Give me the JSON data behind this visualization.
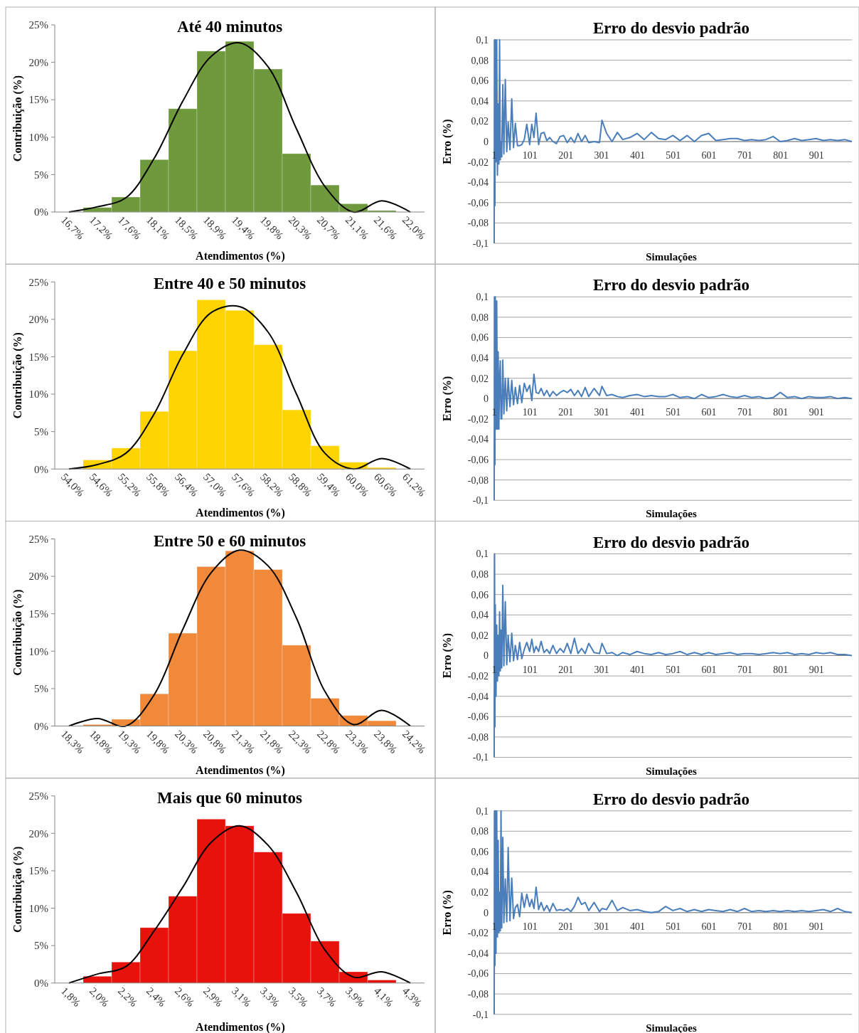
{
  "chart_data": [
    {
      "type": "bar",
      "title": "Até 40 minutos",
      "xlabel": "Atendimentos (%)",
      "ylabel": "Contribuição (%)",
      "categories": [
        "16,7%",
        "17,2%",
        "17,6%",
        "18,1%",
        "18,5%",
        "18,9%",
        "19,4%",
        "19,8%",
        "20,3%",
        "20,7%",
        "21,1%",
        "21,6%",
        "22,0%"
      ],
      "ylim": [
        0,
        25
      ],
      "yticks": [
        {
          "value": 0,
          "label": "0%"
        },
        {
          "value": 5,
          "label": "5%"
        },
        {
          "value": 10,
          "label": "10%"
        },
        {
          "value": 15,
          "label": "15%"
        },
        {
          "value": 20,
          "label": "20%"
        },
        {
          "value": 25,
          "label": "25%"
        }
      ],
      "series": [
        {
          "type": "bar",
          "color": "#6e9a3d",
          "values": [
            0,
            0.6,
            2.0,
            7.0,
            13.8,
            21.5,
            22.8,
            19.1,
            7.8,
            3.6,
            1.1,
            0.2,
            0
          ]
        },
        {
          "type": "line",
          "color": "#000000",
          "values": [
            0,
            0.7,
            1.9,
            7.2,
            14.8,
            20.8,
            22.6,
            19.4,
            11.1,
            3.4,
            0,
            1.5,
            0
          ]
        }
      ]
    },
    {
      "type": "line",
      "title": "Erro do desvio padrão",
      "xlabel": "Simulações",
      "ylabel": "Erro (%)",
      "grid": "y",
      "xlim": [
        1,
        1000
      ],
      "xticks": [
        1,
        101,
        201,
        301,
        401,
        501,
        601,
        701,
        801,
        901
      ],
      "ylim": [
        -0.1,
        0.1
      ],
      "yticks": [
        {
          "value": -0.1,
          "label": "-0,1"
        },
        {
          "value": -0.08,
          "label": "-0,08"
        },
        {
          "value": -0.06,
          "label": "-0,06"
        },
        {
          "value": -0.04,
          "label": "-0,04"
        },
        {
          "value": -0.02,
          "label": "-0,02"
        },
        {
          "value": 0,
          "label": "0"
        },
        {
          "value": 0.02,
          "label": "0,02"
        },
        {
          "value": 0.04,
          "label": "0,04"
        },
        {
          "value": 0.06,
          "label": "0,06"
        },
        {
          "value": 0.08,
          "label": "0,08"
        },
        {
          "value": 0.1,
          "label": "0,1"
        }
      ],
      "x": [
        1,
        2,
        3,
        4,
        6,
        8,
        10,
        12,
        14,
        16,
        18,
        20,
        22,
        25,
        28,
        32,
        36,
        40,
        45,
        50,
        55,
        60,
        66,
        72,
        78,
        85,
        92,
        100,
        106,
        112,
        118,
        125,
        132,
        140,
        148,
        156,
        165,
        175,
        185,
        195,
        205,
        215,
        225,
        235,
        245,
        255,
        265,
        280,
        295,
        302,
        315,
        330,
        345,
        360,
        380,
        400,
        420,
        440,
        460,
        480,
        500,
        520,
        540,
        560,
        580,
        600,
        620,
        640,
        660,
        680,
        700,
        720,
        740,
        760,
        780,
        800,
        820,
        840,
        860,
        880,
        900,
        920,
        940,
        960,
        980,
        1000
      ],
      "series": [
        {
          "type": "line",
          "color": "#4a7ebb",
          "values": [
            -0.1,
            0.1,
            -0.063,
            0.1,
            -0.02,
            0.1,
            -0.033,
            0.037,
            -0.022,
            0.1,
            -0.018,
            0,
            -0.015,
            0.056,
            -0.012,
            0.061,
            -0.01,
            0.019,
            -0.008,
            0.042,
            -0.006,
            0.018,
            -0.004,
            -0.004,
            -0.003,
            0.002,
            0.017,
            -0.003,
            0.017,
            0.004,
            0.028,
            -0.003,
            0.008,
            0.009,
            0.001,
            0.004,
            0,
            -0.002,
            0.005,
            0.006,
            -0.001,
            0.004,
            -0.001,
            0.008,
            0,
            0.006,
            -0.001,
            0,
            -0.001,
            0.021,
            0.008,
            0,
            0.009,
            0.002,
            0.004,
            0.008,
            0.002,
            0.009,
            0.003,
            0.002,
            0.006,
            0.001,
            0.006,
            0,
            0.006,
            0.008,
            0.001,
            0.002,
            0.003,
            0.003,
            0.001,
            0.002,
            0.001,
            0.002,
            0.005,
            0,
            0.001,
            0.003,
            0.001,
            0.002,
            0.003,
            0.001,
            0.002,
            0.001,
            0.002,
            0
          ]
        }
      ]
    },
    {
      "type": "bar",
      "title": "Entre 40 e 50 minutos",
      "xlabel": "Atendimentos (%)",
      "ylabel": "Contribuição (%)",
      "categories": [
        "54,0%",
        "54,6%",
        "55,2%",
        "55,8%",
        "56,4%",
        "57,0%",
        "57,6%",
        "58,2%",
        "58,8%",
        "59,4%",
        "60,0%",
        "60,6%",
        "61,2%"
      ],
      "ylim": [
        0,
        25
      ],
      "yticks": [
        {
          "value": 0,
          "label": "0%"
        },
        {
          "value": 5,
          "label": "5%"
        },
        {
          "value": 10,
          "label": "10%"
        },
        {
          "value": 15,
          "label": "15%"
        },
        {
          "value": 20,
          "label": "20%"
        },
        {
          "value": 25,
          "label": "25%"
        }
      ],
      "series": [
        {
          "type": "bar",
          "color": "#ffd400",
          "values": [
            0,
            1.2,
            2.8,
            7.7,
            15.8,
            22.6,
            21.2,
            16.6,
            7.9,
            3.1,
            0.9,
            0.2,
            0
          ]
        },
        {
          "type": "line",
          "color": "#000000",
          "values": [
            0,
            0.6,
            2.1,
            7.4,
            15.3,
            20.9,
            21.7,
            18.3,
            10.0,
            2.1,
            0,
            1.4,
            0
          ]
        }
      ]
    },
    {
      "type": "line",
      "title": "Erro do desvio padrão",
      "xlabel": "Simulações",
      "ylabel": "Erro (%)",
      "grid": "y",
      "xlim": [
        1,
        1000
      ],
      "xticks": [
        1,
        101,
        201,
        301,
        401,
        501,
        601,
        701,
        801,
        901
      ],
      "ylim": [
        -0.1,
        0.1
      ],
      "yticks": [
        {
          "value": -0.1,
          "label": "-0,1"
        },
        {
          "value": -0.08,
          "label": "-0,08"
        },
        {
          "value": -0.06,
          "label": "-0,06"
        },
        {
          "value": -0.04,
          "label": "-0,04"
        },
        {
          "value": -0.02,
          "label": "-0,02"
        },
        {
          "value": 0,
          "label": "0"
        },
        {
          "value": 0.02,
          "label": "0,02"
        },
        {
          "value": 0.04,
          "label": "0,04"
        },
        {
          "value": 0.06,
          "label": "0,06"
        },
        {
          "value": 0.08,
          "label": "0,08"
        },
        {
          "value": 0.1,
          "label": "0,1"
        }
      ],
      "x": [
        1,
        2,
        3,
        4,
        6,
        8,
        10,
        12,
        14,
        16,
        18,
        20,
        22,
        25,
        28,
        32,
        36,
        40,
        45,
        50,
        55,
        60,
        66,
        72,
        78,
        85,
        92,
        100,
        106,
        112,
        118,
        125,
        132,
        140,
        148,
        156,
        165,
        175,
        185,
        195,
        205,
        215,
        225,
        235,
        245,
        255,
        265,
        280,
        295,
        302,
        315,
        330,
        345,
        360,
        380,
        400,
        420,
        440,
        460,
        480,
        500,
        520,
        540,
        560,
        580,
        600,
        620,
        640,
        660,
        680,
        700,
        720,
        740,
        760,
        780,
        800,
        820,
        840,
        860,
        880,
        900,
        920,
        940,
        960,
        980,
        1000
      ],
      "series": [
        {
          "type": "line",
          "color": "#4a7ebb",
          "values": [
            -0.1,
            0.1,
            -0.065,
            0.1,
            -0.03,
            0.096,
            -0.03,
            0.046,
            -0.03,
            0.02,
            0.037,
            -0.02,
            -0.02,
            0.038,
            -0.015,
            0.02,
            -0.012,
            0.02,
            -0.008,
            0.018,
            -0.006,
            0.011,
            -0.005,
            0.013,
            -0.004,
            0.015,
            0.007,
            0.013,
            -0.002,
            0.024,
            0.006,
            0.005,
            0.01,
            0.003,
            0.008,
            0.002,
            0.007,
            0.003,
            0.006,
            0.008,
            0.006,
            0.009,
            0.003,
            0.008,
            0.002,
            0.011,
            0.002,
            0.01,
            0.003,
            0.012,
            0.003,
            0.004,
            0.002,
            0.001,
            0.003,
            0.004,
            0.002,
            0.003,
            0.002,
            0.002,
            0.004,
            0.001,
            0.002,
            0,
            0.004,
            0.001,
            0.002,
            0.004,
            0.002,
            0.001,
            0.003,
            0.001,
            0.002,
            0,
            0.001,
            0.006,
            0.001,
            0.002,
            0,
            0.002,
            0.001,
            0.001,
            0.002,
            0,
            0.001,
            0
          ]
        }
      ]
    },
    {
      "type": "bar",
      "title": "Entre 50 e 60 minutos",
      "xlabel": "Atendimentos (%)",
      "ylabel": "Contribuição (%)",
      "categories": [
        "18,3%",
        "18,8%",
        "19,3%",
        "19,8%",
        "20,3%",
        "20,8%",
        "21,3%",
        "21,8%",
        "22,3%",
        "22,8%",
        "23,3%",
        "23,8%",
        "24,2%"
      ],
      "ylim": [
        0,
        25
      ],
      "yticks": [
        {
          "value": 0,
          "label": "0%"
        },
        {
          "value": 5,
          "label": "5%"
        },
        {
          "value": 10,
          "label": "10%"
        },
        {
          "value": 15,
          "label": "15%"
        },
        {
          "value": 20,
          "label": "20%"
        },
        {
          "value": 25,
          "label": "25%"
        }
      ],
      "series": [
        {
          "type": "bar",
          "color": "#f08a3a",
          "values": [
            0,
            0.2,
            0.9,
            4.3,
            12.4,
            21.3,
            23.4,
            20.9,
            10.8,
            3.7,
            1.4,
            0.7,
            0
          ]
        },
        {
          "type": "line",
          "color": "#000000",
          "values": [
            0,
            1.0,
            0,
            4.2,
            12.9,
            20.5,
            23.5,
            21.4,
            14.4,
            4.6,
            0.2,
            2.1,
            0
          ]
        }
      ]
    },
    {
      "type": "line",
      "title": "Erro do desvio padrão",
      "xlabel": "Simulações",
      "ylabel": "Erro (%)",
      "grid": "y",
      "xlim": [
        1,
        1000
      ],
      "xticks": [
        1,
        101,
        201,
        301,
        401,
        501,
        601,
        701,
        801,
        901
      ],
      "ylim": [
        -0.1,
        0.1
      ],
      "yticks": [
        {
          "value": -0.1,
          "label": "-0,1"
        },
        {
          "value": -0.08,
          "label": "-0,08"
        },
        {
          "value": -0.06,
          "label": "-0,06"
        },
        {
          "value": -0.04,
          "label": "-0,04"
        },
        {
          "value": -0.02,
          "label": "-0,02"
        },
        {
          "value": 0,
          "label": "0"
        },
        {
          "value": 0.02,
          "label": "0,02"
        },
        {
          "value": 0.04,
          "label": "0,04"
        },
        {
          "value": 0.06,
          "label": "0,06"
        },
        {
          "value": 0.08,
          "label": "0,08"
        },
        {
          "value": 0.1,
          "label": "0,1"
        }
      ],
      "x": [
        1,
        2,
        3,
        4,
        6,
        8,
        10,
        12,
        14,
        16,
        18,
        20,
        22,
        25,
        28,
        32,
        36,
        40,
        45,
        50,
        55,
        60,
        66,
        72,
        78,
        85,
        92,
        100,
        106,
        112,
        118,
        125,
        132,
        140,
        148,
        156,
        165,
        175,
        185,
        195,
        205,
        215,
        225,
        235,
        245,
        255,
        265,
        280,
        295,
        302,
        315,
        330,
        345,
        360,
        380,
        400,
        420,
        440,
        460,
        480,
        500,
        520,
        540,
        560,
        580,
        600,
        620,
        640,
        660,
        680,
        700,
        720,
        740,
        760,
        780,
        800,
        820,
        840,
        860,
        880,
        900,
        920,
        940,
        960,
        980,
        1000
      ],
      "series": [
        {
          "type": "line",
          "color": "#4a7ebb",
          "values": [
            -0.1,
            0.1,
            -0.07,
            0.05,
            -0.04,
            0.03,
            -0.025,
            0.02,
            -0.02,
            0.043,
            -0.015,
            0.025,
            -0.012,
            0.069,
            -0.01,
            0.053,
            -0.009,
            0.02,
            -0.006,
            0.022,
            -0.005,
            0.01,
            -0.004,
            0.013,
            -0.003,
            0.006,
            0.013,
            0.004,
            0.016,
            0.003,
            0.009,
            0.004,
            0.014,
            0.003,
            0.006,
            0.002,
            0.01,
            0.002,
            0.007,
            0.003,
            0.012,
            0.002,
            0.017,
            0.002,
            0.007,
            0.002,
            0.012,
            0.003,
            0.002,
            0.012,
            0.002,
            0.003,
            0,
            0.003,
            0.001,
            0.004,
            0.002,
            0.001,
            0.003,
            0.001,
            0.002,
            0.004,
            0.001,
            0.003,
            0.001,
            0.003,
            0.001,
            0.002,
            0.003,
            0.001,
            0.002,
            0.002,
            0.001,
            0.002,
            0.003,
            0.002,
            0.003,
            0.001,
            0.002,
            0.001,
            0.003,
            0.002,
            0.003,
            0.001,
            0.001,
            0
          ]
        }
      ]
    },
    {
      "type": "bar",
      "title": "Mais que 60 minutos",
      "xlabel": "Atendimentos (%)",
      "ylabel": "Contribuição (%)",
      "categories": [
        "1,8%",
        "2,0%",
        "2,2%",
        "2,4%",
        "2,6%",
        "2,9%",
        "3,1%",
        "3,3%",
        "3,5%",
        "3,7%",
        "3,9%",
        "4,1%",
        "4,3%"
      ],
      "ylim": [
        0,
        25
      ],
      "yticks": [
        {
          "value": 0,
          "label": "0%"
        },
        {
          "value": 5,
          "label": "5%"
        },
        {
          "value": 10,
          "label": "10%"
        },
        {
          "value": 15,
          "label": "15%"
        },
        {
          "value": 20,
          "label": "20%"
        },
        {
          "value": 25,
          "label": "25%"
        }
      ],
      "series": [
        {
          "type": "bar",
          "color": "#e8120c",
          "values": [
            0,
            0.9,
            2.8,
            7.4,
            11.6,
            21.9,
            21.0,
            17.5,
            9.3,
            5.6,
            1.5,
            0.4,
            0
          ]
        },
        {
          "type": "line",
          "color": "#000000",
          "values": [
            0,
            1.2,
            2.2,
            7.0,
            12.8,
            18.8,
            21.0,
            18.4,
            12.1,
            4.4,
            0.8,
            1.5,
            0
          ]
        }
      ]
    },
    {
      "type": "line",
      "title": "Erro do desvio padrão",
      "xlabel": "Simulações",
      "ylabel": "Erro (%)",
      "grid": "y",
      "xlim": [
        1,
        1000
      ],
      "xticks": [
        1,
        101,
        201,
        301,
        401,
        501,
        601,
        701,
        801,
        901
      ],
      "ylim": [
        -0.1,
        0.1
      ],
      "yticks": [
        {
          "value": -0.1,
          "label": "-0,1"
        },
        {
          "value": -0.08,
          "label": "-0,08"
        },
        {
          "value": -0.06,
          "label": "-0,06"
        },
        {
          "value": -0.04,
          "label": "-0,04"
        },
        {
          "value": -0.02,
          "label": "-0,02"
        },
        {
          "value": 0,
          "label": "0"
        },
        {
          "value": 0.02,
          "label": "0,02"
        },
        {
          "value": 0.04,
          "label": "0,04"
        },
        {
          "value": 0.06,
          "label": "0,06"
        },
        {
          "value": 0.08,
          "label": "0,08"
        },
        {
          "value": 0.1,
          "label": "0,1"
        }
      ],
      "x": [
        1,
        2,
        3,
        4,
        6,
        8,
        10,
        12,
        14,
        16,
        18,
        20,
        22,
        25,
        28,
        32,
        36,
        40,
        45,
        50,
        55,
        60,
        66,
        72,
        78,
        85,
        92,
        100,
        106,
        112,
        118,
        125,
        132,
        140,
        148,
        156,
        165,
        175,
        185,
        195,
        205,
        215,
        225,
        235,
        245,
        255,
        265,
        280,
        295,
        302,
        315,
        330,
        345,
        360,
        380,
        400,
        420,
        440,
        460,
        480,
        500,
        520,
        540,
        560,
        580,
        600,
        620,
        640,
        660,
        680,
        700,
        720,
        740,
        760,
        780,
        800,
        820,
        840,
        860,
        880,
        900,
        920,
        940,
        960,
        980,
        1000
      ],
      "series": [
        {
          "type": "line",
          "color": "#4a7ebb",
          "values": [
            -0.1,
            0.1,
            -0.052,
            0.1,
            -0.04,
            0.1,
            -0.024,
            0.071,
            -0.02,
            0.02,
            -0.018,
            0.1,
            -0.015,
            0.074,
            -0.01,
            0.033,
            -0.009,
            0.064,
            -0.008,
            0.034,
            -0.006,
            0.005,
            0.008,
            -0.004,
            0.019,
            0.005,
            0.018,
            0.006,
            0.013,
            0.004,
            0.025,
            0.003,
            0.01,
            0.002,
            0.007,
            0.001,
            0.009,
            0.002,
            0.003,
            0.002,
            0.004,
            0.001,
            0.006,
            0.015,
            0.008,
            0.01,
            0.002,
            0.01,
            0.001,
            0.004,
            0.003,
            0.012,
            0.002,
            0.005,
            0.002,
            0.003,
            0.001,
            0,
            0.001,
            0.006,
            0.002,
            0.004,
            0.001,
            0.003,
            0.001,
            0.003,
            0.002,
            0.001,
            0.003,
            0.001,
            0.004,
            0.001,
            0.002,
            0.001,
            0.002,
            0.001,
            0.002,
            0.001,
            0.002,
            0.001,
            0.002,
            0.003,
            0.001,
            0.004,
            0.001,
            0
          ]
        }
      ]
    }
  ]
}
